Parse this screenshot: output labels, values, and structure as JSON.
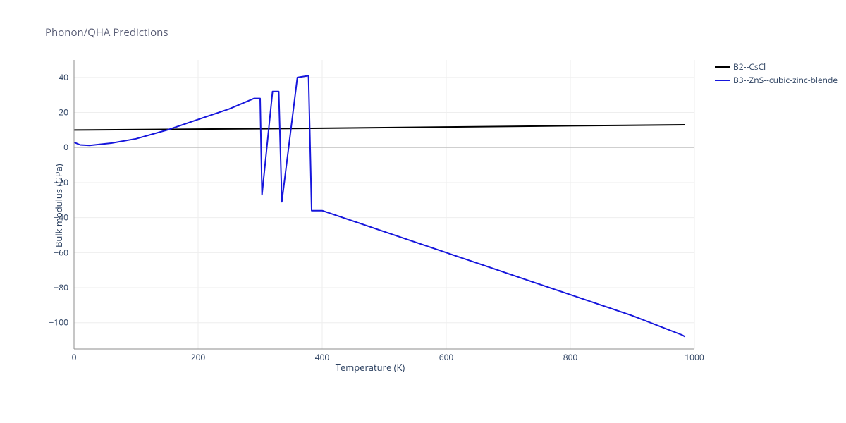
{
  "title": "Phonon/QHA Predictions",
  "xlabel": "Temperature (K)",
  "ylabel": "Bulk modulus (GPa)",
  "background_color": "#ffffff",
  "grid_color": "#eeeeee",
  "zero_line_color": "#bfbfbf",
  "axis_line_color": "#8c8c8c",
  "text_color": "#2a3f5f",
  "title_fontsize": 15,
  "label_fontsize": 13,
  "tick_fontsize": 12,
  "line_width": 2,
  "xlim": [
    0,
    1000
  ],
  "ylim": [
    -115,
    50
  ],
  "xticks": [
    0,
    200,
    400,
    600,
    800,
    1000
  ],
  "yticks": [
    -100,
    -80,
    -60,
    -40,
    -20,
    0,
    20,
    40
  ],
  "legend": [
    {
      "label": "B2--CsCl",
      "color": "#000000"
    },
    {
      "label": "B3--ZnS--cubic-zinc-blende",
      "color": "#1616dc"
    }
  ],
  "series": [
    {
      "name": "B2--CsCl",
      "color": "#000000",
      "points": [
        [
          0,
          10
        ],
        [
          200,
          10.5
        ],
        [
          400,
          11
        ],
        [
          600,
          11.7
        ],
        [
          800,
          12.4
        ],
        [
          985,
          13
        ]
      ]
    },
    {
      "name": "B3--ZnS--cubic-zinc-blende",
      "color": "#1616dc",
      "points": [
        [
          0,
          3
        ],
        [
          10,
          1.5
        ],
        [
          25,
          1.2
        ],
        [
          60,
          2.5
        ],
        [
          100,
          5
        ],
        [
          150,
          10
        ],
        [
          200,
          16
        ],
        [
          250,
          22
        ],
        [
          290,
          28
        ],
        [
          300,
          28
        ],
        [
          303,
          -27
        ],
        [
          320,
          32
        ],
        [
          330,
          32
        ],
        [
          335,
          -31
        ],
        [
          360,
          40
        ],
        [
          378,
          41
        ],
        [
          383,
          -36
        ],
        [
          400,
          -36
        ],
        [
          500,
          -48
        ],
        [
          600,
          -60
        ],
        [
          700,
          -72
        ],
        [
          800,
          -84
        ],
        [
          900,
          -96
        ],
        [
          980,
          -107
        ],
        [
          985,
          -108
        ]
      ]
    }
  ]
}
